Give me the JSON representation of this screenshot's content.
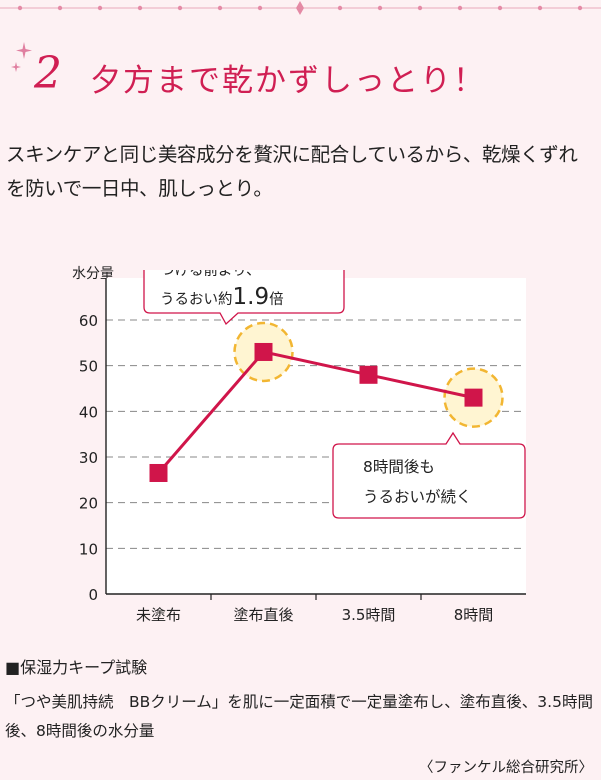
{
  "header": {
    "number": "2",
    "title": "夕方まで乾かずしっとり！"
  },
  "lead_text": "スキンケアと同じ美容成分を贅沢に配合しているから、乾燥くずれを防いで一日中、肌しっとり。",
  "chart_data": {
    "type": "line",
    "ylabel": "水分量",
    "ylim": [
      0,
      60
    ],
    "yticks": [
      0,
      10,
      20,
      30,
      40,
      50,
      60
    ],
    "categories": [
      "未塗布",
      "塗布直後",
      "3.5時間",
      "8時間"
    ],
    "series": [
      {
        "name": "水分量",
        "values": [
          26.5,
          53,
          48,
          43
        ]
      }
    ],
    "grid": "dashed horizontal",
    "annotations": [
      {
        "target": "塗布直後",
        "text_line1": "つける前より、",
        "text_line2_prefix": "うるおい約",
        "emphasis": "1.9",
        "text_line2_suffix": "倍"
      },
      {
        "target": "8時間",
        "text_line1": "8時間後も",
        "text_line2": "うるおいが続く"
      }
    ],
    "colors": {
      "line": "#d0154a",
      "marker": "#d0154a",
      "highlight": "#f2b632",
      "grid": "#888888"
    }
  },
  "footnote": {
    "title": "■保湿力キープ試験",
    "body": "「つや美肌持続　BBクリーム」を肌に一定面積で一定量塗布し、塗布直後、3.5時間後、8時間後の水分量",
    "credit": "〈ファンケル総合研究所〉"
  }
}
